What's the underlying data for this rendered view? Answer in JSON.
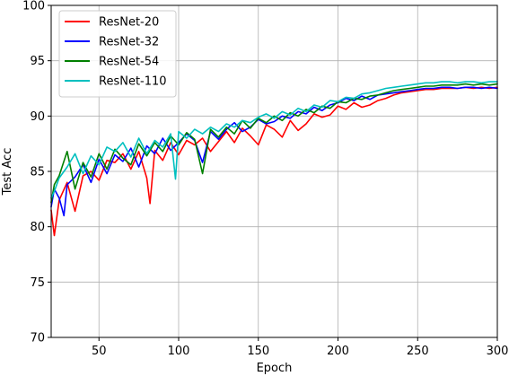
{
  "chart_data": {
    "type": "line",
    "xlabel": "Epoch",
    "ylabel": "Test Acc",
    "xlim": [
      20,
      300
    ],
    "ylim": [
      70,
      100
    ],
    "xticks": [
      50,
      100,
      150,
      200,
      250,
      300
    ],
    "yticks": [
      70,
      75,
      80,
      85,
      90,
      95,
      100
    ],
    "grid": true,
    "legend_position": "top-left",
    "series": [
      {
        "name": "ResNet-20",
        "color": "#ff0000",
        "x": [
          20,
          22,
          25,
          30,
          35,
          40,
          45,
          50,
          55,
          60,
          65,
          70,
          75,
          80,
          82,
          85,
          90,
          95,
          100,
          105,
          110,
          115,
          120,
          125,
          130,
          135,
          140,
          145,
          150,
          155,
          160,
          165,
          170,
          175,
          180,
          185,
          190,
          195,
          200,
          205,
          210,
          215,
          220,
          225,
          230,
          235,
          240,
          245,
          250,
          255,
          260,
          265,
          270,
          275,
          280,
          285,
          290,
          295,
          300
        ],
        "y": [
          81.5,
          79.2,
          82.4,
          84.0,
          81.4,
          84.6,
          85.0,
          84.2,
          86.0,
          85.8,
          86.6,
          85.2,
          86.8,
          84.4,
          82.1,
          86.9,
          86.0,
          87.6,
          86.5,
          87.8,
          87.4,
          88.0,
          86.8,
          87.7,
          88.6,
          87.6,
          88.9,
          88.2,
          87.4,
          89.2,
          88.8,
          88.1,
          89.6,
          88.7,
          89.3,
          90.2,
          89.9,
          90.1,
          90.9,
          90.6,
          91.2,
          90.8,
          91.0,
          91.4,
          91.6,
          91.9,
          92.1,
          92.2,
          92.3,
          92.4,
          92.4,
          92.5,
          92.5,
          92.5,
          92.6,
          92.5,
          92.6,
          92.5,
          92.6
        ]
      },
      {
        "name": "ResNet-32",
        "color": "#0000ff",
        "x": [
          20,
          22,
          25,
          28,
          30,
          35,
          40,
          45,
          50,
          55,
          60,
          65,
          70,
          75,
          80,
          85,
          90,
          95,
          100,
          105,
          110,
          115,
          120,
          125,
          130,
          135,
          140,
          145,
          150,
          155,
          160,
          165,
          170,
          175,
          180,
          185,
          190,
          195,
          200,
          205,
          210,
          215,
          220,
          225,
          230,
          235,
          240,
          245,
          250,
          255,
          260,
          265,
          270,
          275,
          280,
          285,
          290,
          295,
          300
        ],
        "y": [
          81.8,
          83.4,
          82.6,
          81.0,
          83.8,
          84.5,
          85.6,
          84.0,
          86.1,
          84.8,
          86.5,
          85.9,
          87.1,
          85.4,
          87.3,
          86.6,
          88.0,
          86.9,
          87.6,
          88.4,
          87.8,
          85.8,
          88.6,
          87.9,
          88.8,
          89.4,
          88.6,
          89.0,
          89.7,
          89.3,
          89.5,
          90.0,
          89.8,
          90.4,
          90.2,
          90.8,
          90.5,
          91.0,
          91.2,
          91.6,
          91.4,
          91.8,
          91.5,
          91.9,
          92.0,
          92.1,
          92.2,
          92.3,
          92.4,
          92.5,
          92.5,
          92.6,
          92.6,
          92.5,
          92.6,
          92.6,
          92.5,
          92.6,
          92.5
        ]
      },
      {
        "name": "ResNet-54",
        "color": "#008000",
        "x": [
          20,
          22,
          25,
          30,
          35,
          40,
          45,
          50,
          55,
          60,
          65,
          70,
          75,
          80,
          85,
          90,
          95,
          100,
          105,
          110,
          115,
          120,
          125,
          130,
          135,
          140,
          145,
          150,
          155,
          160,
          165,
          170,
          175,
          180,
          185,
          190,
          195,
          200,
          205,
          210,
          215,
          220,
          225,
          230,
          235,
          240,
          245,
          250,
          255,
          260,
          265,
          270,
          275,
          280,
          285,
          290,
          295,
          300
        ],
        "y": [
          82.2,
          83.8,
          84.6,
          86.8,
          83.4,
          85.8,
          84.5,
          86.6,
          85.2,
          87.0,
          86.2,
          85.6,
          87.5,
          86.4,
          87.6,
          86.8,
          88.2,
          87.4,
          88.5,
          87.9,
          84.8,
          88.8,
          88.1,
          89.0,
          88.4,
          89.6,
          88.9,
          89.8,
          89.4,
          90.0,
          89.6,
          90.3,
          90.0,
          90.6,
          90.3,
          90.9,
          90.7,
          91.3,
          91.2,
          91.6,
          91.5,
          91.8,
          91.9,
          92.1,
          92.3,
          92.4,
          92.5,
          92.6,
          92.7,
          92.7,
          92.8,
          92.8,
          92.8,
          92.9,
          92.8,
          92.9,
          92.8,
          92.9
        ]
      },
      {
        "name": "ResNet-110",
        "color": "#00bfbf",
        "x": [
          20,
          22,
          25,
          30,
          35,
          40,
          45,
          50,
          55,
          60,
          65,
          70,
          75,
          80,
          85,
          90,
          95,
          98,
          100,
          105,
          110,
          115,
          120,
          125,
          130,
          135,
          140,
          145,
          150,
          155,
          160,
          165,
          170,
          175,
          180,
          185,
          190,
          195,
          200,
          205,
          210,
          215,
          220,
          225,
          230,
          235,
          240,
          245,
          250,
          255,
          260,
          265,
          270,
          275,
          280,
          285,
          290,
          295,
          300
        ],
        "y": [
          82.6,
          83.2,
          84.4,
          85.4,
          86.6,
          84.8,
          86.4,
          85.6,
          87.2,
          86.8,
          87.6,
          86.3,
          88.0,
          86.6,
          87.8,
          87.2,
          88.4,
          84.3,
          88.6,
          88.0,
          88.8,
          88.4,
          89.0,
          88.6,
          89.3,
          89.0,
          89.6,
          89.4,
          89.9,
          90.2,
          89.8,
          90.4,
          90.1,
          90.7,
          90.4,
          91.0,
          90.8,
          91.4,
          91.3,
          91.7,
          91.6,
          92.0,
          92.1,
          92.3,
          92.5,
          92.6,
          92.7,
          92.8,
          92.9,
          93.0,
          93.0,
          93.1,
          93.1,
          93.0,
          93.1,
          93.1,
          93.0,
          93.1,
          93.1
        ]
      }
    ]
  }
}
